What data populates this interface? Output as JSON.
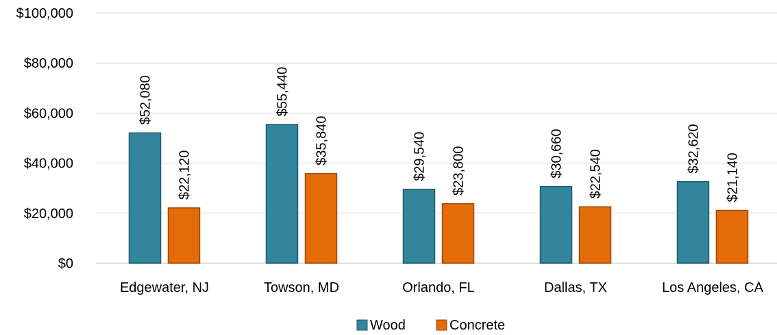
{
  "chart_data": {
    "type": "bar",
    "categories": [
      "Edgewater, NJ",
      "Towson, MD",
      "Orlando, FL",
      "Dallas, TX",
      "Los Angeles, CA"
    ],
    "series": [
      {
        "name": "Wood",
        "values": [
          52080,
          55440,
          29540,
          30660,
          32620
        ],
        "labels": [
          "$52,080",
          "$55,440",
          "$29,540",
          "$30,660",
          "$32,620"
        ],
        "color": "#31859C",
        "stroke": "#215968"
      },
      {
        "name": "Concrete",
        "values": [
          22120,
          35840,
          23800,
          22540,
          21140
        ],
        "labels": [
          "$22,120",
          "$35,840",
          "$23,800",
          "$22,540",
          "$21,140"
        ],
        "color": "#E36C09",
        "stroke": "#984807"
      }
    ],
    "yticks": [
      0,
      20000,
      40000,
      60000,
      80000,
      100000
    ],
    "ytick_labels": [
      "$0",
      "$20,000",
      "$40,000",
      "$60,000",
      "$80,000",
      "$100,000"
    ],
    "ylim": [
      0,
      100000
    ],
    "grid": true,
    "legend_position": "bottom",
    "title": "",
    "xlabel": "",
    "ylabel": ""
  }
}
